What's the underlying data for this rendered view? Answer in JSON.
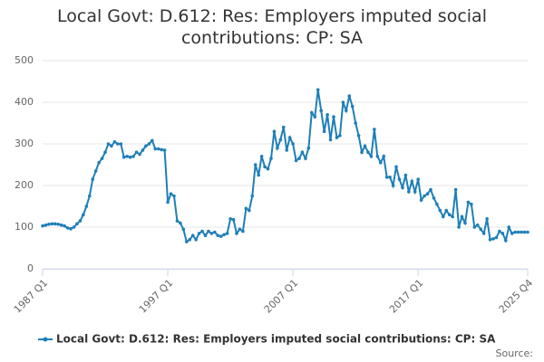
{
  "chart_data": {
    "type": "line",
    "title": "Local Govt: D.612: Res: Employers imputed social contributions: CP: SA",
    "categories": [
      "1987 Q1",
      null,
      null,
      null,
      null,
      null,
      null,
      null,
      null,
      null,
      null,
      null,
      null,
      null,
      null,
      null,
      null,
      null,
      null,
      null,
      null,
      null,
      null,
      null,
      null,
      null,
      null,
      null,
      null,
      null,
      null,
      null,
      null,
      null,
      null,
      null,
      null,
      null,
      null,
      null,
      "1997 Q1",
      null,
      null,
      null,
      null,
      null,
      null,
      null,
      null,
      null,
      null,
      null,
      null,
      null,
      null,
      null,
      null,
      null,
      null,
      null,
      null,
      null,
      null,
      null,
      null,
      null,
      null,
      null,
      null,
      null,
      null,
      null,
      null,
      null,
      null,
      null,
      null,
      null,
      null,
      null,
      "2007 Q1",
      null,
      null,
      null,
      null,
      null,
      null,
      null,
      null,
      null,
      null,
      null,
      null,
      null,
      null,
      null,
      null,
      null,
      null,
      null,
      null,
      null,
      null,
      null,
      null,
      null,
      null,
      null,
      null,
      null,
      null,
      null,
      null,
      null,
      null,
      null,
      null,
      null,
      null,
      null,
      "2017 Q1",
      null,
      null,
      null,
      null,
      null,
      null,
      null,
      null,
      null,
      null,
      null,
      null,
      null,
      null,
      null,
      null,
      null,
      null,
      null,
      null,
      null,
      null,
      null,
      null,
      null,
      null,
      null,
      null,
      null,
      null,
      null,
      null,
      null,
      null,
      "2025 Q4"
    ],
    "series": [
      {
        "name": "Local Govt: D.612: Res: Employers imputed social contributions: CP: SA",
        "color": "#1f7fb8",
        "values": [
          103,
          105,
          107,
          108,
          108,
          107,
          105,
          103,
          98,
          96,
          100,
          108,
          115,
          130,
          150,
          175,
          215,
          235,
          255,
          265,
          280,
          300,
          295,
          305,
          300,
          300,
          268,
          270,
          268,
          270,
          280,
          275,
          285,
          295,
          300,
          308,
          288,
          288,
          286,
          285,
          160,
          180,
          175,
          115,
          110,
          95,
          65,
          70,
          80,
          70,
          85,
          90,
          80,
          90,
          85,
          88,
          80,
          78,
          82,
          85,
          120,
          118,
          85,
          95,
          90,
          145,
          140,
          175,
          250,
          225,
          270,
          245,
          240,
          265,
          330,
          290,
          310,
          340,
          285,
          315,
          300,
          260,
          265,
          280,
          265,
          290,
          375,
          365,
          430,
          380,
          330,
          370,
          310,
          365,
          315,
          320,
          400,
          380,
          415,
          390,
          350,
          320,
          280,
          295,
          280,
          270,
          335,
          270,
          255,
          270,
          220,
          220,
          200,
          245,
          215,
          195,
          225,
          185,
          210,
          185,
          215,
          165,
          175,
          180,
          190,
          170,
          155,
          140,
          125,
          140,
          130,
          125,
          190,
          100,
          125,
          110,
          160,
          155,
          100,
          105,
          95,
          85,
          120,
          70,
          72,
          75,
          90,
          85,
          68,
          100,
          85,
          88,
          88,
          88,
          88,
          88
        ]
      }
    ],
    "ylim": [
      0,
      500
    ],
    "yticks": [
      0,
      100,
      200,
      300,
      400,
      500
    ],
    "grid": true,
    "source": "Source:"
  }
}
